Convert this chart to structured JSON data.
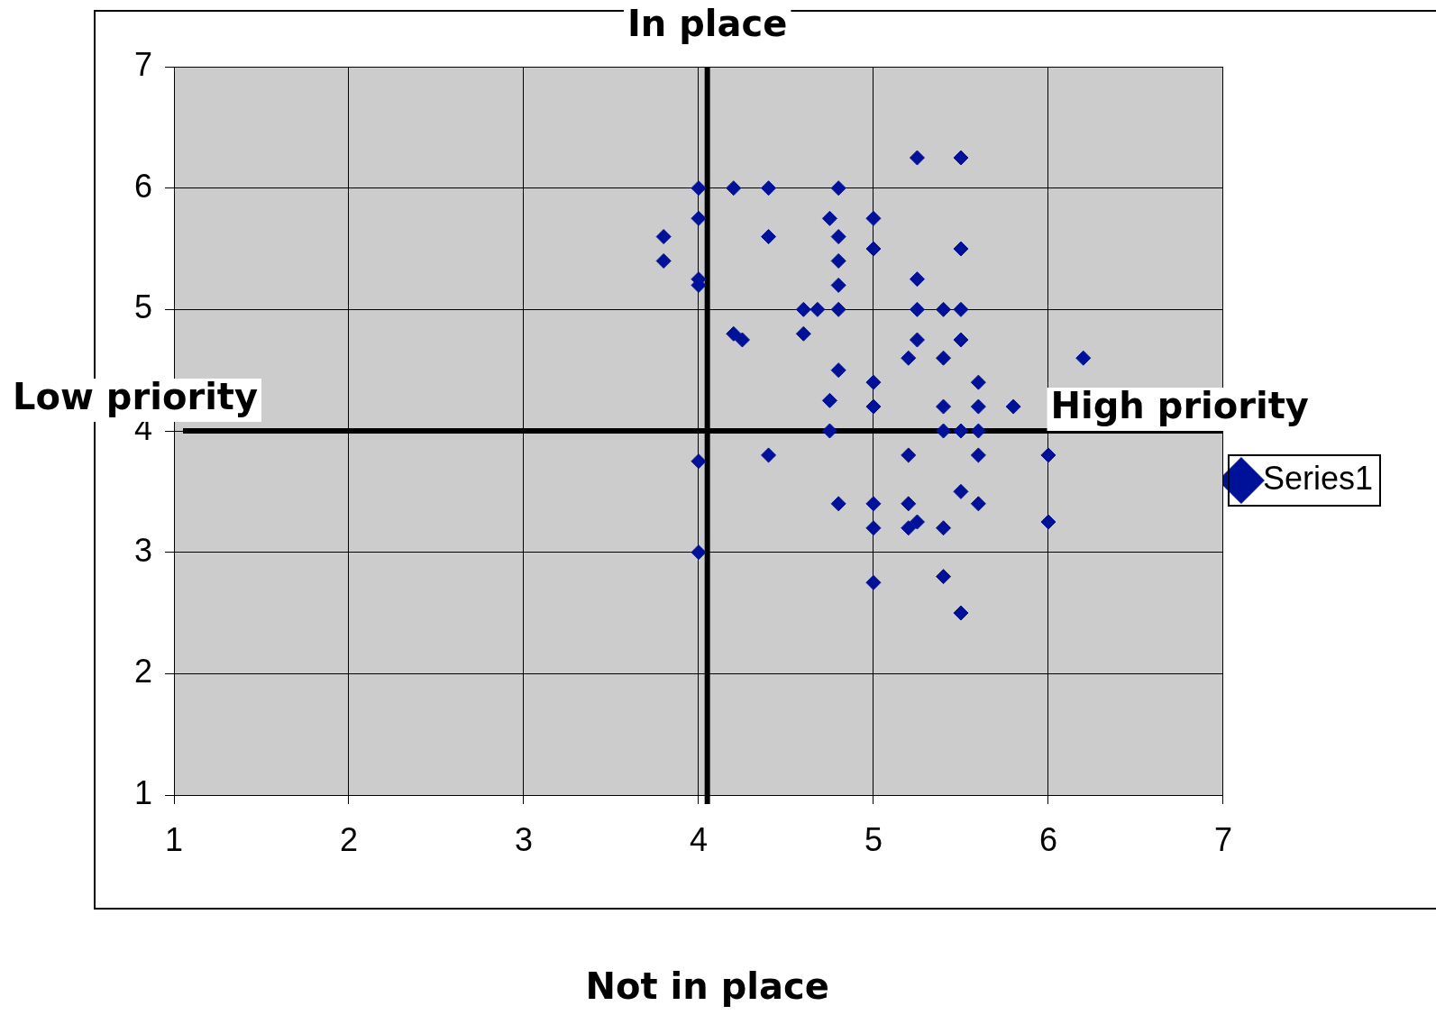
{
  "chart_data": {
    "type": "scatter",
    "xlabel": "Not in place",
    "annotations": [
      "In place",
      "Low priority",
      "High priority"
    ],
    "series": [
      {
        "name": "Series1",
        "color": "#001199",
        "x": [
          3.8,
          3.8,
          4,
          4,
          4,
          4,
          4,
          4,
          4.2,
          4.4,
          4.4,
          4.2,
          4.25,
          4.4,
          4.6,
          4.68,
          4.6,
          4.8,
          4.75,
          4.8,
          4.8,
          4.8,
          4.8,
          4.8,
          4.75,
          4.75,
          4.8,
          5,
          5,
          5,
          5,
          5,
          5,
          5,
          5.25,
          5.5,
          5.5,
          5.25,
          5.25,
          5.4,
          5.5,
          5.25,
          5.5,
          5.2,
          5.4,
          5.6,
          5.4,
          5.6,
          5.8,
          5.4,
          5.5,
          5.6,
          5.2,
          5.6,
          6,
          5.5,
          5.2,
          5.6,
          5.2,
          5.25,
          5.4,
          6,
          5.4,
          5.5,
          6.2
        ],
        "values": [
          5.6,
          5.4,
          6,
          5.75,
          5.25,
          5.2,
          3.75,
          3,
          6,
          6,
          5.6,
          4.8,
          4.75,
          3.8,
          5,
          5,
          4.8,
          6,
          5.75,
          5.6,
          5.4,
          5.2,
          5,
          4.5,
          4.25,
          4,
          3.4,
          5.75,
          5.5,
          4.4,
          4.2,
          3.4,
          3.2,
          2.75,
          6.25,
          6.25,
          5.5,
          5.25,
          5,
          5,
          5,
          4.75,
          4.75,
          4.6,
          4.6,
          4.4,
          4.2,
          4.2,
          4.2,
          4,
          4,
          4,
          3.8,
          3.8,
          3.8,
          3.5,
          3.4,
          3.4,
          3.2,
          3.25,
          3.2,
          3.25,
          2.8,
          2.5,
          4.6
        ]
      }
    ],
    "xlim": [
      1,
      7
    ],
    "ylim": [
      1,
      7
    ],
    "xticks": [
      1,
      2,
      3,
      4,
      5,
      6,
      7
    ],
    "yticks": [
      1,
      2,
      3,
      4,
      5,
      6,
      7
    ],
    "ref_lines": [
      {
        "axis": "x",
        "value": 4.05,
        "color": "#000000"
      },
      {
        "axis": "y",
        "value": 4,
        "color": "#000000"
      }
    ],
    "grid": true,
    "legend": "right",
    "marker": "diamond"
  }
}
